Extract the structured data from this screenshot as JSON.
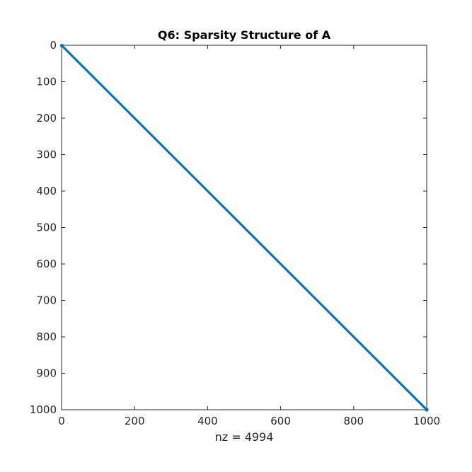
{
  "chart_data": {
    "type": "scatter",
    "title": "Q6: Sparsity Structure of A",
    "xlabel": "nz = 4994",
    "ylabel": "",
    "xlim": [
      0,
      1000
    ],
    "ylim": [
      0,
      1000
    ],
    "y_reversed": true,
    "grid": false,
    "xticks": [
      0,
      200,
      400,
      600,
      800,
      1000
    ],
    "yticks": [
      0,
      100,
      200,
      300,
      400,
      500,
      600,
      700,
      800,
      900,
      1000
    ],
    "series": [
      {
        "structure": "banded diagonal",
        "color": "#0072BD",
        "band_offsets": [
          -2,
          -1,
          0,
          1,
          2
        ],
        "x": [
          1,
          1000
        ],
        "y": [
          1,
          1000
        ]
      }
    ]
  }
}
